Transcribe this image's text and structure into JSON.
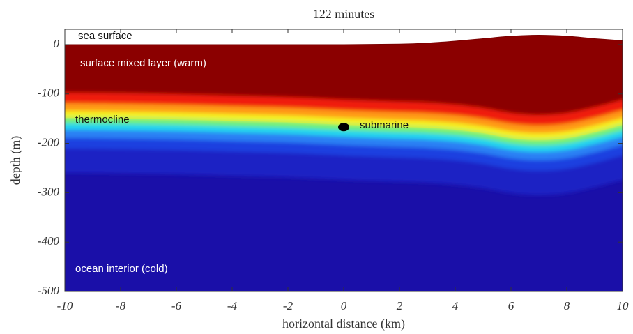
{
  "chart_data": {
    "type": "field",
    "title": "122 minutes",
    "xlabel": "horizontal distance (km)",
    "ylabel": "depth (m)",
    "xlim": [
      -10,
      10
    ],
    "ylim": [
      -500,
      31
    ],
    "xticks": [
      -10,
      -8,
      -6,
      -4,
      -2,
      0,
      2,
      4,
      6,
      8,
      10
    ],
    "yticks": [
      -500,
      -400,
      -300,
      -200,
      -100,
      0
    ],
    "x": [
      -10,
      -8,
      -6,
      -4,
      -2,
      0,
      2,
      3,
      4,
      5,
      6,
      7,
      8,
      9,
      10
    ],
    "surface": [
      0,
      0,
      0,
      0,
      0,
      0,
      1,
      3,
      7,
      12,
      17,
      19,
      17,
      12,
      8
    ],
    "thermocline": [
      -147,
      -148,
      -150,
      -153,
      -156,
      -161,
      -165,
      -167,
      -171,
      -178,
      -188,
      -192,
      -188,
      -176,
      -161
    ],
    "annotations": [
      "sea surface",
      "surface mixed layer (warm)",
      "thermocline",
      "ocean interior (cold)"
    ],
    "marker": {
      "label": "submarine",
      "x": 0,
      "y": -167
    }
  }
}
